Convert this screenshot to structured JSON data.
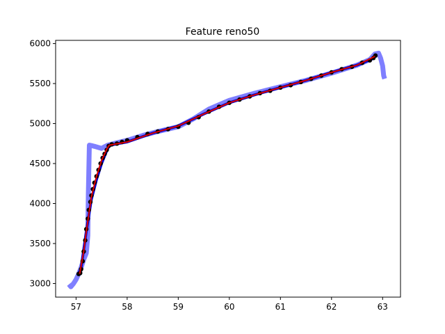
{
  "chart_data": {
    "type": "line",
    "title": "Feature reno50",
    "xlabel": "",
    "ylabel": "",
    "xlim": [
      56.6,
      63.35
    ],
    "ylim": [
      2830,
      6040
    ],
    "xticks": [
      57,
      58,
      59,
      60,
      61,
      62,
      63
    ],
    "yticks": [
      3000,
      3500,
      4000,
      4500,
      5000,
      5500,
      6000
    ],
    "grid": false,
    "legend": "none",
    "colors": {
      "raw_trace": "#7f7fff",
      "blue_line": "#0000cc",
      "dots": "#000000",
      "fit_line": "#dd0000"
    },
    "series": [
      {
        "style": "thick-light-blue-line",
        "x": [
          56.86,
          56.9,
          56.95,
          57.0,
          57.05,
          57.1,
          57.15,
          57.2,
          57.23,
          57.24,
          57.26,
          57.3,
          57.36,
          57.44,
          57.5,
          57.56,
          57.62,
          57.8,
          58.0,
          58.3,
          58.6,
          59.0,
          59.3,
          59.6,
          60.0,
          60.5,
          61.0,
          61.5,
          62.0,
          62.5,
          62.75,
          62.85,
          62.92,
          62.96,
          63.0,
          63.02,
          63.04
        ],
        "y": [
          2990,
          2960,
          3000,
          3050,
          3120,
          3200,
          3300,
          3380,
          3600,
          4100,
          4730,
          4725,
          4715,
          4700,
          4690,
          4710,
          4730,
          4760,
          4790,
          4850,
          4900,
          4960,
          5060,
          5180,
          5290,
          5380,
          5460,
          5540,
          5630,
          5730,
          5800,
          5870,
          5880,
          5820,
          5720,
          5600,
          5560
        ]
      },
      {
        "style": "dark-blue-line",
        "x": [
          57.05,
          57.1,
          57.2,
          57.3,
          57.4,
          57.5,
          57.6,
          57.65,
          58.0,
          58.5,
          59.0,
          59.5,
          60.0,
          60.5,
          61.0,
          61.5,
          62.0,
          62.5,
          62.8,
          62.85
        ],
        "y": [
          3120,
          3200,
          3650,
          4050,
          4300,
          4500,
          4660,
          4730,
          4770,
          4880,
          4970,
          5120,
          5260,
          5360,
          5450,
          5540,
          5640,
          5730,
          5810,
          5850
        ]
      },
      {
        "style": "black-dots",
        "x": [
          57.05,
          57.08,
          57.1,
          57.13,
          57.15,
          57.18,
          57.2,
          57.23,
          57.25,
          57.28,
          57.3,
          57.33,
          57.36,
          57.4,
          57.44,
          57.48,
          57.52,
          57.56,
          57.6,
          57.64,
          57.7,
          57.8,
          57.9,
          58.0,
          58.2,
          58.4,
          58.6,
          58.8,
          59.0,
          59.2,
          59.4,
          59.6,
          59.8,
          60.0,
          60.2,
          60.4,
          60.6,
          60.8,
          61.0,
          61.2,
          61.4,
          61.6,
          61.8,
          62.0,
          62.2,
          62.4,
          62.6,
          62.75,
          62.82,
          62.86
        ],
        "y": [
          3120,
          3130,
          3180,
          3280,
          3400,
          3540,
          3680,
          3810,
          3920,
          4020,
          4100,
          4180,
          4260,
          4340,
          4420,
          4500,
          4570,
          4620,
          4670,
          4720,
          4740,
          4750,
          4770,
          4790,
          4830,
          4870,
          4900,
          4930,
          4960,
          5010,
          5080,
          5150,
          5210,
          5260,
          5300,
          5340,
          5380,
          5410,
          5450,
          5480,
          5520,
          5560,
          5600,
          5640,
          5680,
          5710,
          5760,
          5790,
          5820,
          5850
        ]
      },
      {
        "style": "red-fit-line",
        "x": [
          57.07,
          57.15,
          57.2,
          57.3,
          57.4,
          57.5,
          57.6,
          57.65,
          58.0,
          58.5,
          59.0,
          59.5,
          60.0,
          60.5,
          61.0,
          61.5,
          62.0,
          62.5,
          62.85
        ],
        "y": [
          3120,
          3400,
          3650,
          4080,
          4340,
          4540,
          4680,
          4730,
          4770,
          4880,
          4970,
          5120,
          5260,
          5360,
          5450,
          5540,
          5640,
          5730,
          5840
        ]
      }
    ]
  }
}
